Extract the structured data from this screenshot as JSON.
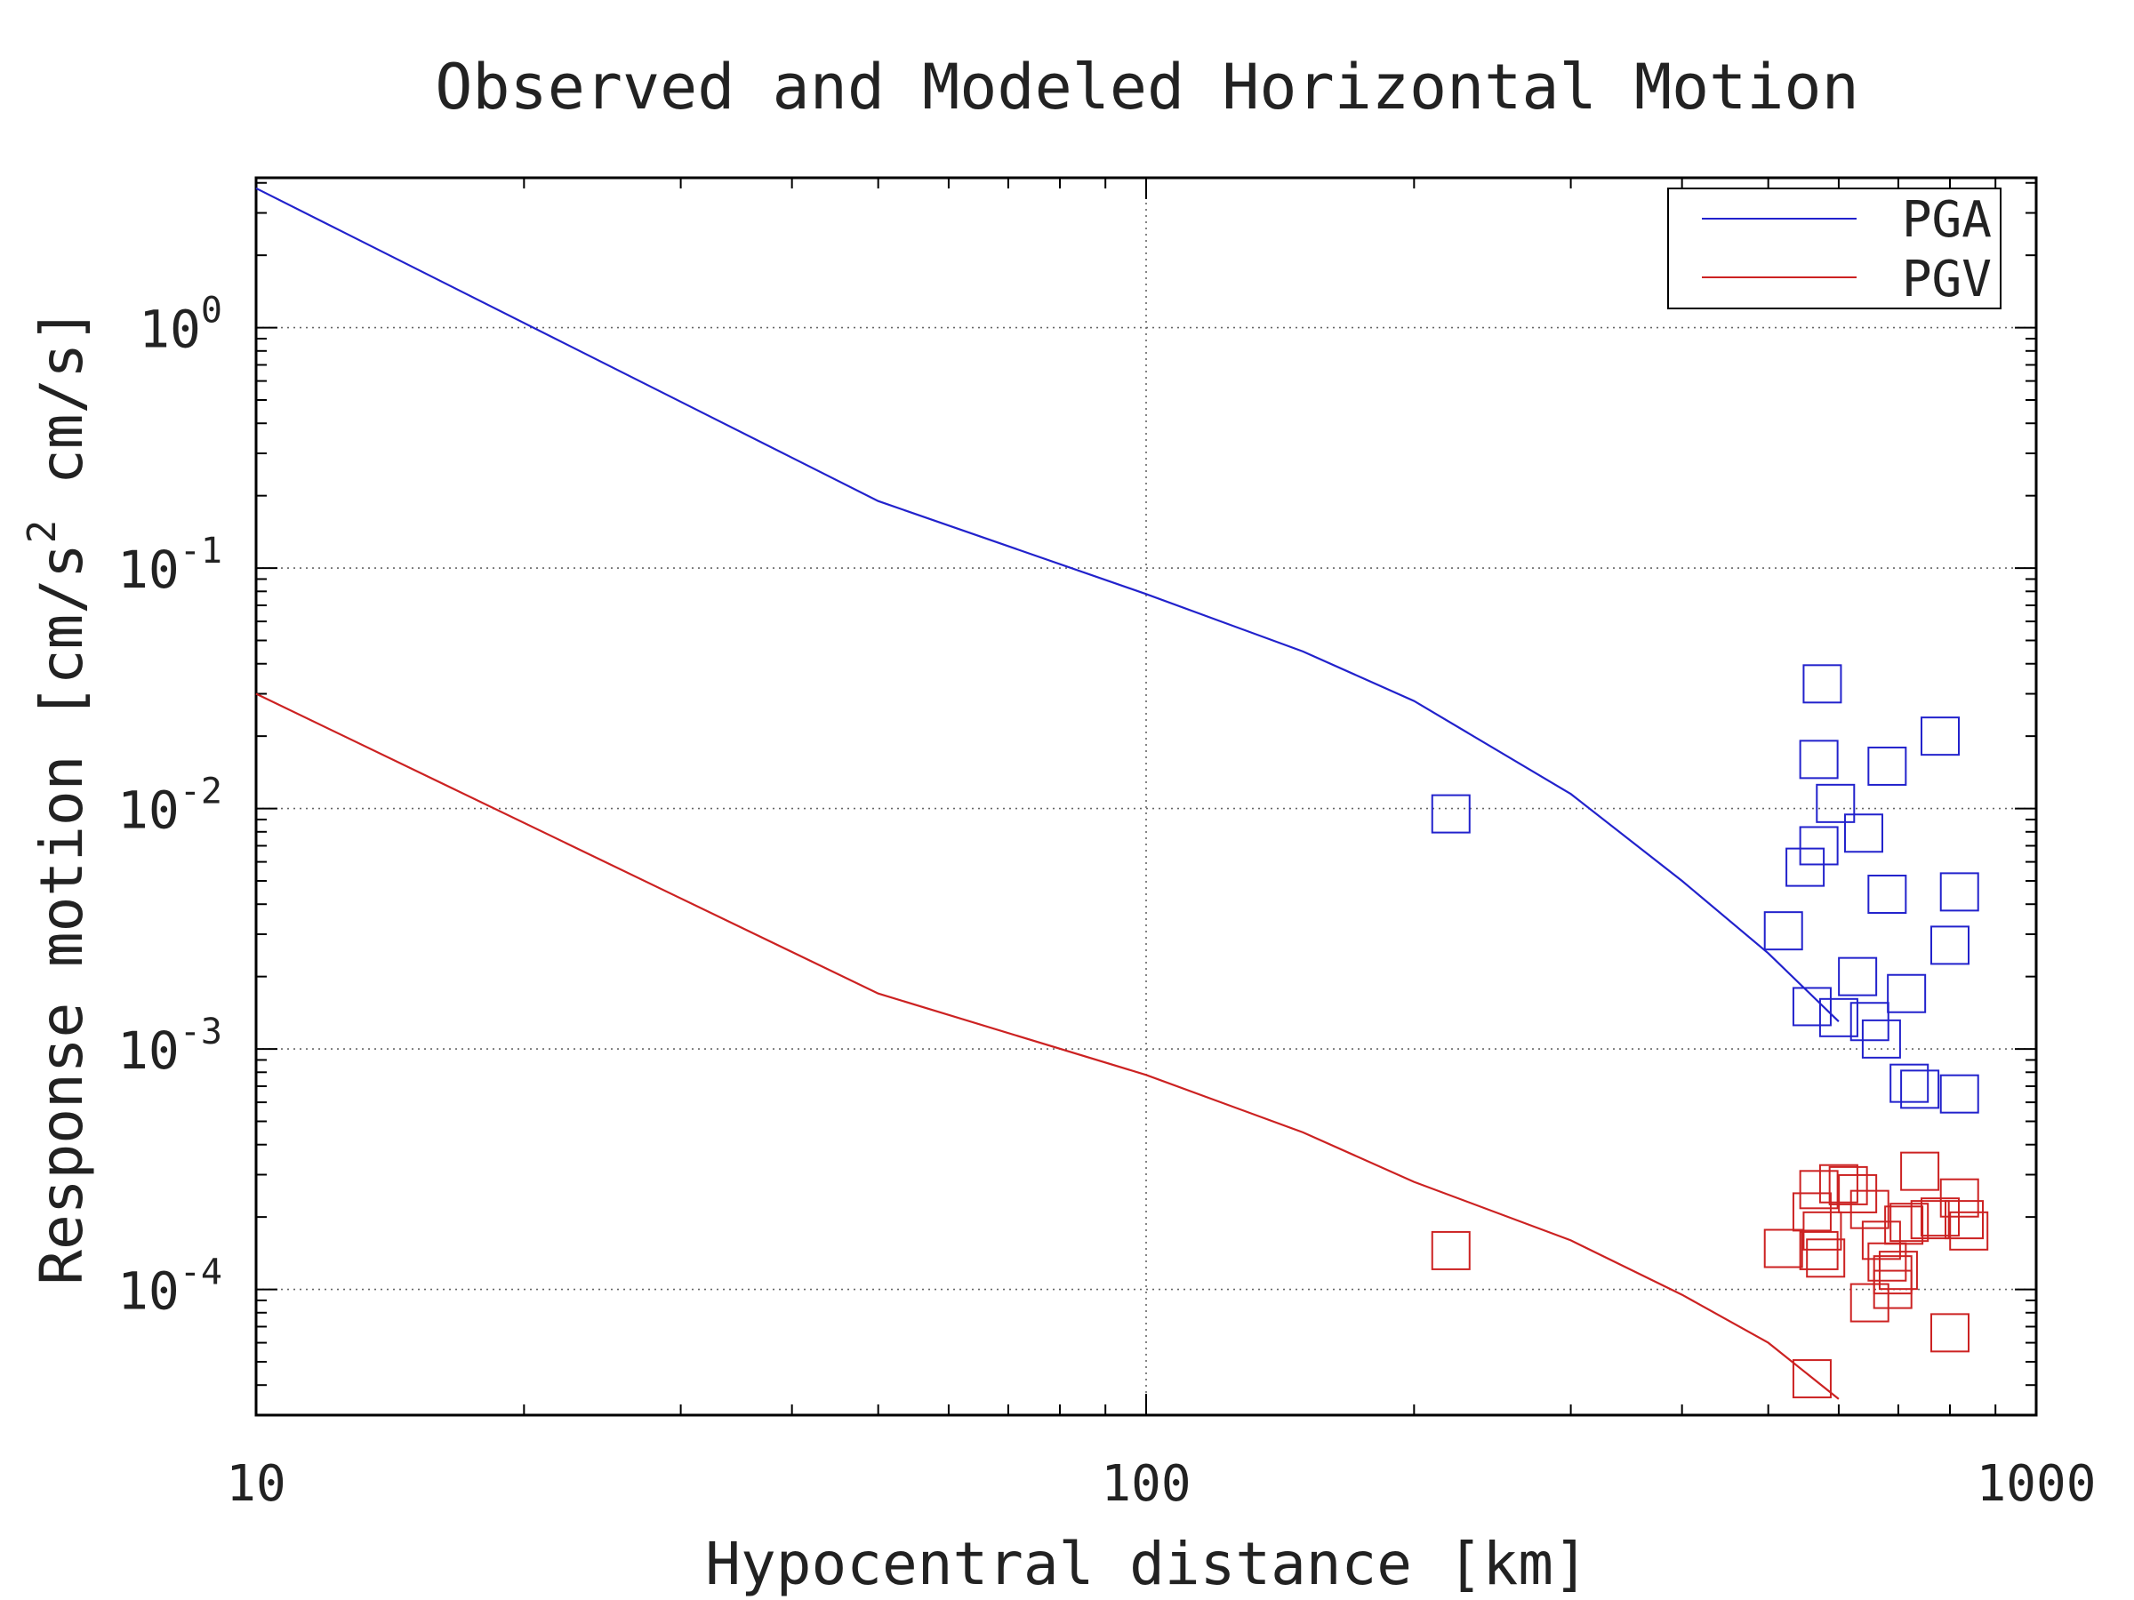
{
  "chart_data": {
    "type": "scatter",
    "title": "Observed and Modeled Horizontal Motion",
    "xlabel": "Hypocentral distance [km]",
    "ylabel_parts": [
      "Response motion  [cm/s",
      "2",
      "  cm/s]"
    ],
    "x_scale": "log",
    "y_scale": "log",
    "xlim": [
      10,
      1000
    ],
    "ylim": [
      3e-05,
      4.2
    ],
    "x_ticks": [
      {
        "value": 10,
        "label": "10"
      },
      {
        "value": 100,
        "label": "100"
      },
      {
        "value": 1000,
        "label": "1000"
      }
    ],
    "y_ticks": [
      {
        "value": 1,
        "base": "10",
        "exp": "0"
      },
      {
        "value": 0.1,
        "base": "10",
        "exp": "-1"
      },
      {
        "value": 0.01,
        "base": "10",
        "exp": "-2"
      },
      {
        "value": 0.001,
        "base": "10",
        "exp": "-3"
      },
      {
        "value": 0.0001,
        "base": "10",
        "exp": "-4"
      }
    ],
    "grid": true,
    "legend_position": "top-right",
    "series": [
      {
        "name": "PGA",
        "color": "#2222cc",
        "line": [
          [
            10,
            3.8
          ],
          [
            50,
            0.19
          ],
          [
            100,
            0.078
          ],
          [
            150,
            0.045
          ],
          [
            200,
            0.028
          ],
          [
            300,
            0.0115
          ],
          [
            400,
            0.005
          ],
          [
            500,
            0.0025
          ],
          [
            600,
            0.0013
          ]
        ],
        "points": [
          [
            220,
            0.0095
          ],
          [
            575,
            0.033
          ],
          [
            570,
            0.016
          ],
          [
            595,
            0.0105
          ],
          [
            680,
            0.015
          ],
          [
            780,
            0.02
          ],
          [
            570,
            0.007
          ],
          [
            550,
            0.0057
          ],
          [
            640,
            0.0079
          ],
          [
            520,
            0.0031
          ],
          [
            680,
            0.0044
          ],
          [
            820,
            0.0045
          ],
          [
            800,
            0.0027
          ],
          [
            630,
            0.002
          ],
          [
            715,
            0.0017
          ],
          [
            560,
            0.0015
          ],
          [
            600,
            0.00135
          ],
          [
            650,
            0.0013
          ],
          [
            670,
            0.0011
          ],
          [
            720,
            0.00072
          ],
          [
            740,
            0.00068
          ],
          [
            820,
            0.00065
          ]
        ]
      },
      {
        "name": "PGV",
        "color": "#cc2222",
        "line": [
          [
            10,
            0.03
          ],
          [
            50,
            0.0017
          ],
          [
            100,
            0.00078
          ],
          [
            150,
            0.00045
          ],
          [
            200,
            0.00028
          ],
          [
            300,
            0.00016
          ],
          [
            400,
            9.5e-05
          ],
          [
            500,
            6e-05
          ],
          [
            600,
            3.5e-05
          ]
        ],
        "points": [
          [
            220,
            0.000145
          ],
          [
            560,
            4.25e-05
          ],
          [
            520,
            0.000148
          ],
          [
            560,
            0.00021
          ],
          [
            570,
            0.00026
          ],
          [
            575,
            0.000175
          ],
          [
            570,
            0.000145
          ],
          [
            580,
            0.000135
          ],
          [
            600,
            0.000275
          ],
          [
            615,
            0.00027
          ],
          [
            630,
            0.00025
          ],
          [
            650,
            0.000215
          ],
          [
            670,
            0.00016
          ],
          [
            680,
            0.00013
          ],
          [
            690,
            0.000115
          ],
          [
            700,
            0.00012
          ],
          [
            710,
            0.000185
          ],
          [
            720,
            0.00019
          ],
          [
            740,
            0.00031
          ],
          [
            760,
            0.000195
          ],
          [
            780,
            0.0002
          ],
          [
            820,
            0.00024
          ],
          [
            830,
            0.000195
          ],
          [
            840,
            0.000175
          ],
          [
            650,
            8.8e-05
          ],
          [
            690,
            0.0001
          ],
          [
            800,
            6.6e-05
          ]
        ]
      }
    ]
  }
}
